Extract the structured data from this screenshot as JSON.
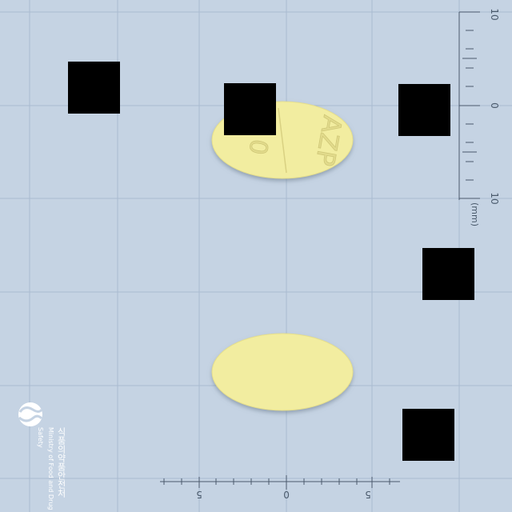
{
  "colors": {
    "background": "#c5d3e3",
    "grid": "#a9bbd0",
    "ruler": "#4a5a6c",
    "pill": "#f2eda0",
    "redaction": "#000000"
  },
  "scale": {
    "unit_label": "(mm)",
    "vertical_ticks": [
      "10",
      "0",
      "10"
    ],
    "horizontal_ticks": [
      "5",
      "0",
      "5"
    ]
  },
  "pill": {
    "front_imprint": "AZP",
    "front_mark": "0",
    "back_imprint": ""
  },
  "logo": {
    "name_korean": "식품의약품안전처",
    "name_english": "Ministry of Food and Drug Safety"
  }
}
